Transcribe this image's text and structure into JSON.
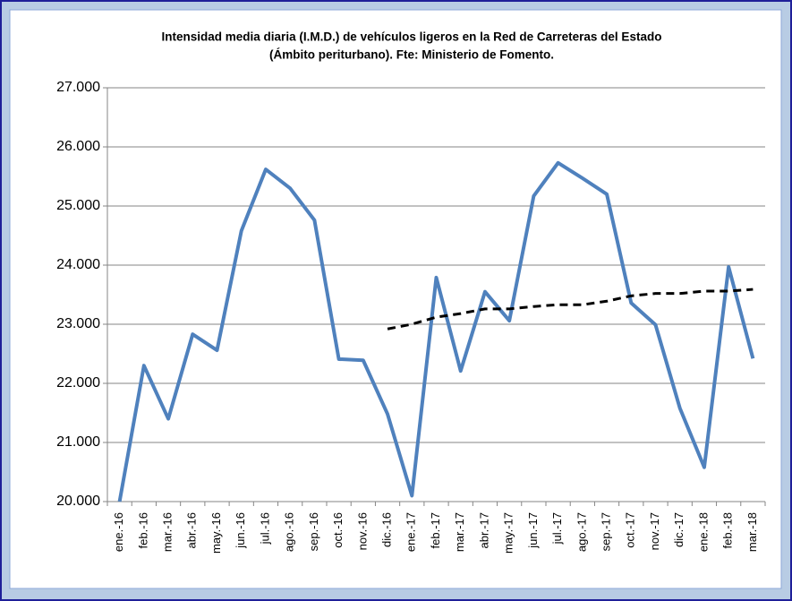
{
  "chart_data": {
    "type": "line",
    "title": [
      "Intensidad media diaria (I.M.D.) de vehículos ligeros en la Red de Carreteras del Estado",
      "(Ámbito periturbano). Fte: Ministerio de Fomento."
    ],
    "categories": [
      "ene.-16",
      "feb.-16",
      "mar.-16",
      "abr.-16",
      "may.-16",
      "jun.-16",
      "jul.-16",
      "ago.-16",
      "sep.-16",
      "oct.-16",
      "nov.-16",
      "dic.-16",
      "ene.-17",
      "feb.-17",
      "mar.-17",
      "abr.-17",
      "may.-17",
      "jun.-17",
      "jul.-17",
      "ago.-17",
      "sep.-17",
      "oct.-17",
      "nov.-17",
      "dic.-17",
      "ene.-18",
      "feb.-18",
      "mar.-18"
    ],
    "series": [
      {
        "color": "#4f81bd",
        "style": "solid",
        "values": [
          20000,
          22300,
          21400,
          22830,
          22560,
          24580,
          25620,
          25300,
          24760,
          22410,
          22390,
          21480,
          20100,
          23790,
          22210,
          23550,
          23060,
          25170,
          25730,
          25470,
          25200,
          23360,
          22990,
          21580,
          20580,
          23970,
          22420
        ]
      },
      {
        "color": "#000000",
        "style": "dashed",
        "values": [
          null,
          null,
          null,
          null,
          null,
          null,
          null,
          null,
          null,
          null,
          null,
          22920,
          23000,
          23120,
          23180,
          23260,
          23260,
          23300,
          23330,
          23330,
          23390,
          23480,
          23520,
          23520,
          23560,
          23560,
          23590
        ]
      }
    ],
    "ylim": [
      20000,
      27000
    ],
    "yticks": [
      {
        "value": 20000,
        "label": "20.000"
      },
      {
        "value": 21000,
        "label": "21.000"
      },
      {
        "value": 22000,
        "label": "22.000"
      },
      {
        "value": 23000,
        "label": "23.000"
      },
      {
        "value": 24000,
        "label": "24.000"
      },
      {
        "value": 25000,
        "label": "25.000"
      },
      {
        "value": 26000,
        "label": "26.000"
      },
      {
        "value": 27000,
        "label": "27.000"
      }
    ],
    "grid": true
  }
}
